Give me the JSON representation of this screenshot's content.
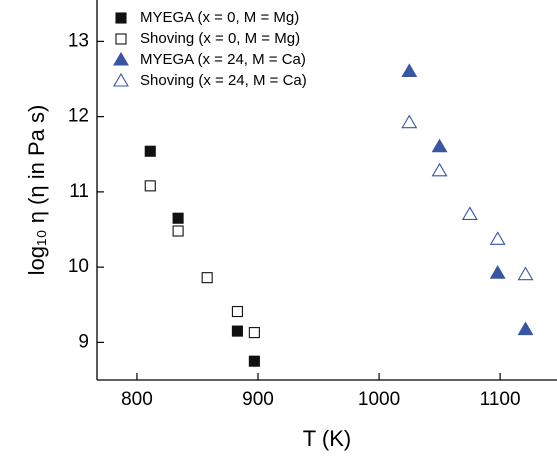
{
  "chart_data": {
    "type": "scatter",
    "x_label": "T (K)",
    "y_label": "log₁₀ η (η in Pa s)",
    "xlim": [
      767,
      1147
    ],
    "ylim": [
      8.5,
      13.55
    ],
    "xticks": [
      800,
      900,
      1000,
      1100
    ],
    "yticks": [
      9,
      10,
      11,
      12,
      13
    ],
    "legend": "upper-left",
    "series": [
      {
        "name": "MYEGA (x = 0, M = Mg)",
        "color": "#111111",
        "marker": "square",
        "filled": true,
        "x": [
          811,
          834,
          883,
          897
        ],
        "y": [
          11.54,
          10.65,
          9.15,
          8.75
        ]
      },
      {
        "name": "Shoving (x = 0, M = Mg)",
        "color": "#111111",
        "marker": "square",
        "filled": false,
        "x": [
          811,
          834,
          858,
          883,
          897
        ],
        "y": [
          11.08,
          10.48,
          9.86,
          9.41,
          9.13
        ]
      },
      {
        "name": "MYEGA (x = 24, M = Ca)",
        "color": "#3a55a4",
        "marker": "triangle",
        "filled": true,
        "x": [
          1025,
          1050,
          1098,
          1121
        ],
        "y": [
          12.6,
          11.6,
          9.92,
          9.17
        ]
      },
      {
        "name": "Shoving (x = 24, M = Ca)",
        "color": "#3a55a4",
        "marker": "triangle",
        "filled": false,
        "x": [
          1025,
          1050,
          1075,
          1098,
          1121
        ],
        "y": [
          11.92,
          11.28,
          10.7,
          10.37,
          9.9
        ]
      }
    ]
  }
}
